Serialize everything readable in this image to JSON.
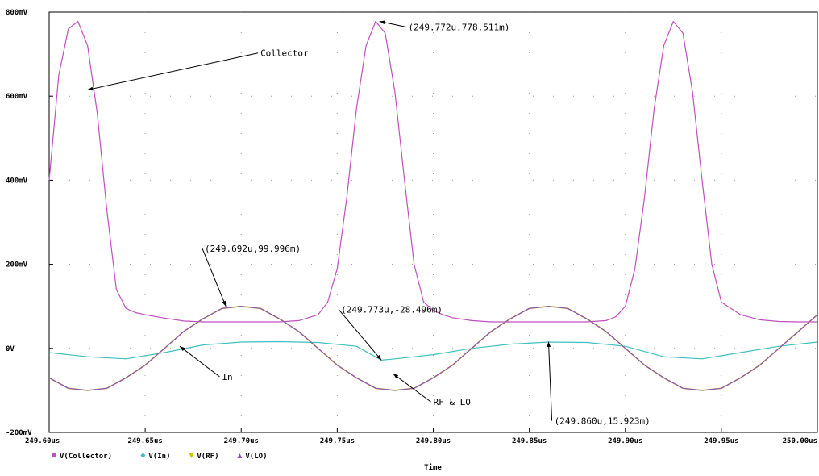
{
  "chart_data": {
    "type": "line",
    "xlabel": "Time",
    "ylabel": "",
    "title": "",
    "xlim": [
      249.6,
      250.0
    ],
    "ylim": [
      -200,
      800
    ],
    "x_unit": "us",
    "y_unit": "mV",
    "x_ticks": [
      249.6,
      249.65,
      249.7,
      249.75,
      249.8,
      249.85,
      249.9,
      249.95,
      250.0
    ],
    "x_tick_labels": [
      "249.60us",
      "249.65us",
      "249.70us",
      "249.75us",
      "249.80us",
      "249.85us",
      "249.90us",
      "249.95us",
      "250.00us"
    ],
    "y_ticks": [
      -200,
      0,
      200,
      400,
      600,
      800
    ],
    "y_tick_labels": [
      "-200mV",
      "0V",
      "200mV",
      "400mV",
      "600mV",
      "800mV"
    ],
    "grid": true,
    "legend_position": "bottom-left",
    "series": [
      {
        "name": "V(Collector)",
        "color": "#c050c0",
        "marker": "square",
        "x": [
          249.6,
          249.605,
          249.61,
          249.615,
          249.62,
          249.625,
          249.63,
          249.635,
          249.64,
          249.645,
          249.65,
          249.66,
          249.67,
          249.68,
          249.69,
          249.7,
          249.71,
          249.72,
          249.73,
          249.74,
          249.745,
          249.75,
          249.755,
          249.76,
          249.765,
          249.77,
          249.775,
          249.78,
          249.785,
          249.79,
          249.795,
          249.8,
          249.805,
          249.81,
          249.82,
          249.83,
          249.84,
          249.85,
          249.86,
          249.87,
          249.88,
          249.89,
          249.895,
          249.9,
          249.905,
          249.91,
          249.915,
          249.92,
          249.925,
          249.93,
          249.935,
          249.94,
          249.945,
          249.95,
          249.96,
          249.97,
          249.98,
          249.99,
          250.0
        ],
        "y": [
          400,
          650,
          760,
          778,
          720,
          560,
          330,
          140,
          95,
          85,
          80,
          72,
          65,
          63,
          63,
          63,
          63,
          63,
          66,
          80,
          110,
          190,
          360,
          570,
          720,
          778,
          750,
          610,
          400,
          200,
          110,
          90,
          80,
          73,
          66,
          63,
          63,
          63,
          63,
          63,
          63,
          66,
          75,
          100,
          190,
          360,
          570,
          720,
          778,
          750,
          610,
          400,
          200,
          110,
          80,
          68,
          64,
          63,
          63
        ]
      },
      {
        "name": "V(In)",
        "color": "#40c0c0",
        "marker": "diamond",
        "x": [
          249.6,
          249.62,
          249.64,
          249.66,
          249.68,
          249.7,
          249.72,
          249.74,
          249.76,
          249.773,
          249.78,
          249.8,
          249.82,
          249.84,
          249.86,
          249.88,
          249.9,
          249.92,
          249.94,
          249.96,
          249.98,
          250.0
        ],
        "y": [
          -10,
          -20,
          -25,
          -10,
          8,
          15,
          16,
          14,
          5,
          -28,
          -25,
          -15,
          0,
          10,
          15,
          14,
          5,
          -20,
          -25,
          -10,
          5,
          15
        ]
      },
      {
        "name": "V(RF)",
        "color": "#c8c800",
        "marker": "triangle-down",
        "x": [
          249.6,
          249.61,
          249.62,
          249.63,
          249.64,
          249.65,
          249.66,
          249.67,
          249.68,
          249.69,
          249.7,
          249.71,
          249.72,
          249.73,
          249.74,
          249.75,
          249.76,
          249.77,
          249.78,
          249.79,
          249.8,
          249.81,
          249.82,
          249.83,
          249.84,
          249.85,
          249.86,
          249.87,
          249.88,
          249.89,
          249.9,
          249.91,
          249.92,
          249.93,
          249.94,
          249.95,
          249.96,
          249.97,
          249.98,
          249.99,
          250.0
        ],
        "y": [
          -70,
          -95,
          -100,
          -95,
          -70,
          -40,
          0,
          40,
          70,
          95,
          100,
          95,
          70,
          40,
          0,
          -40,
          -70,
          -95,
          -100,
          -95,
          -70,
          -40,
          0,
          40,
          70,
          95,
          100,
          95,
          70,
          40,
          0,
          -40,
          -70,
          -95,
          -100,
          -95,
          -70,
          -40,
          0,
          40,
          80
        ]
      },
      {
        "name": "V(LO)",
        "color": "#9050c0",
        "marker": "triangle-up",
        "x": [
          249.6,
          249.61,
          249.62,
          249.63,
          249.64,
          249.65,
          249.66,
          249.67,
          249.68,
          249.69,
          249.7,
          249.71,
          249.72,
          249.73,
          249.74,
          249.75,
          249.76,
          249.77,
          249.78,
          249.79,
          249.8,
          249.81,
          249.82,
          249.83,
          249.84,
          249.85,
          249.86,
          249.87,
          249.88,
          249.89,
          249.9,
          249.91,
          249.92,
          249.93,
          249.94,
          249.95,
          249.96,
          249.97,
          249.98,
          249.99,
          250.0
        ],
        "y": [
          -70,
          -95,
          -100,
          -95,
          -70,
          -40,
          0,
          40,
          70,
          95,
          100,
          95,
          70,
          40,
          0,
          -40,
          -70,
          -95,
          -100,
          -95,
          -70,
          -40,
          0,
          40,
          70,
          95,
          100,
          95,
          70,
          40,
          0,
          -40,
          -70,
          -95,
          -100,
          -95,
          -70,
          -40,
          0,
          40,
          80
        ]
      }
    ],
    "annotations": [
      {
        "text": "Collector",
        "x": 249.71,
        "y": 695,
        "target_x": 249.62,
        "target_y": 615
      },
      {
        "text": "(249.772u,778.511m)",
        "x": 249.787,
        "y": 757,
        "target_x": 249.772,
        "target_y": 778
      },
      {
        "text": "(249.692u,99.996m)",
        "x": 249.681,
        "y": 230,
        "target_x": 249.692,
        "target_y": 100
      },
      {
        "text": "(249.773u,-28.496m)",
        "x": 249.752,
        "y": 85,
        "target_x": 249.773,
        "target_y": -28
      },
      {
        "text": "In",
        "x": 249.69,
        "y": -75,
        "target_x": 249.668,
        "target_y": 5
      },
      {
        "text": "RF & LO",
        "x": 249.8,
        "y": -135,
        "target_x": 249.779,
        "target_y": -60
      },
      {
        "text": "(249.860u,15.923m)",
        "x": 249.863,
        "y": -180,
        "target_x": 249.86,
        "target_y": 16
      }
    ]
  }
}
